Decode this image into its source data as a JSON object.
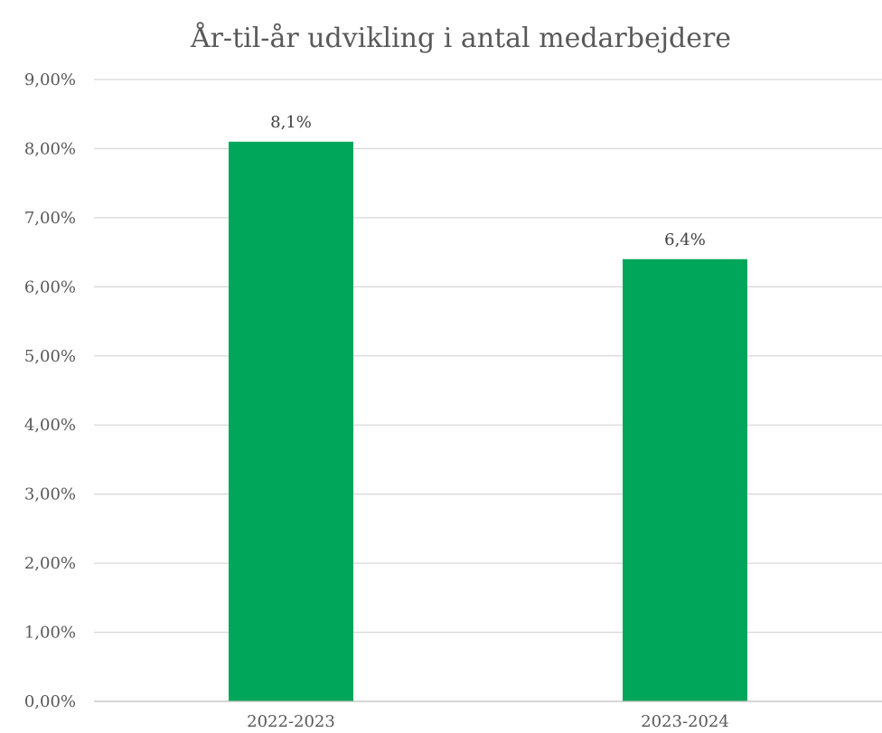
{
  "chart_data": {
    "type": "bar",
    "title": "År-til-år udvikling i antal medarbejdere",
    "xlabel": "",
    "ylabel": "",
    "categories": [
      "2022-2023",
      "2023-2024"
    ],
    "values": [
      8.1,
      6.4
    ],
    "data_labels": [
      "8,1%",
      "6,4%"
    ],
    "ylim": [
      0,
      9
    ],
    "y_ticks": [
      0,
      1,
      2,
      3,
      4,
      5,
      6,
      7,
      8,
      9
    ],
    "y_tick_labels": [
      "0,00%",
      "1,00%",
      "2,00%",
      "3,00%",
      "4,00%",
      "5,00%",
      "6,00%",
      "7,00%",
      "8,00%",
      "9,00%"
    ],
    "grid": true,
    "legend": "none",
    "bar_color": "#00A65A"
  }
}
